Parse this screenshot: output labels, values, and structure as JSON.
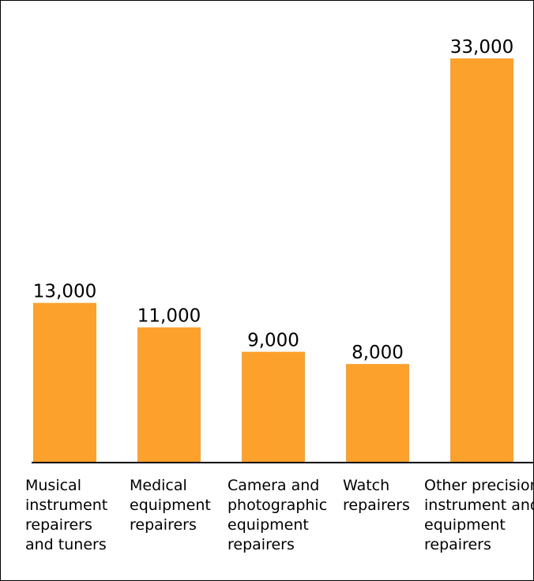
{
  "chart_data": {
    "type": "bar",
    "title": "",
    "xlabel": "",
    "ylabel": "",
    "ylim": [
      0,
      33000
    ],
    "grid": false,
    "legend": "none",
    "bar_color": "#fca12b",
    "axis_color": "#000000",
    "categories": [
      [
        "Musical",
        "instrument",
        "repairers",
        "and tuners"
      ],
      [
        "Medical",
        "equipment",
        "repairers"
      ],
      [
        "Camera and",
        "photographic",
        "equipment",
        "repairers"
      ],
      [
        "Watch",
        "repairers"
      ],
      [
        "Other precision",
        "instrument and",
        "equipment",
        "repairers"
      ]
    ],
    "values": [
      13000,
      11000,
      9000,
      8000,
      33000
    ],
    "value_labels": [
      "13,000",
      "11,000",
      "9,000",
      "8,000",
      "33,000"
    ]
  }
}
